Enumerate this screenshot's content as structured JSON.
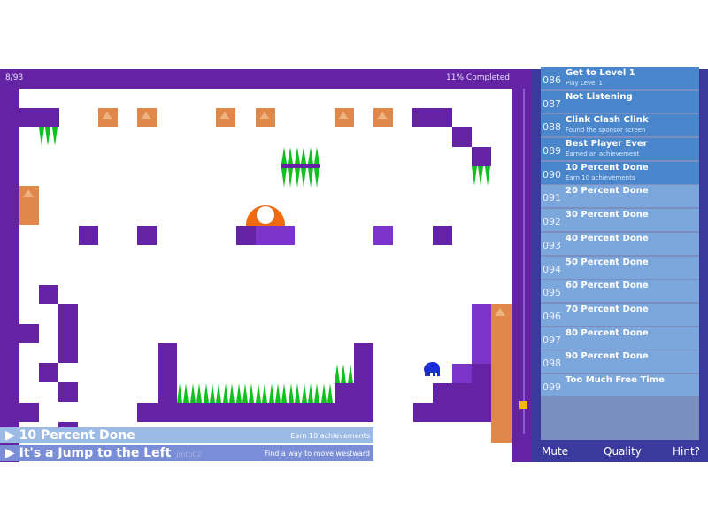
{
  "hud": {
    "level": "8/93",
    "progress": "11% Completed",
    "progress_value": 11
  },
  "banners": [
    {
      "title": "10 Percent Done",
      "desc": "Earn 10 achievements"
    },
    {
      "title": "It's a Jump to the Left",
      "desc": "Find a way to move westward",
      "author": "jmtb02"
    }
  ],
  "achievements": [
    {
      "num": "086",
      "name": "Get to Level 1",
      "desc": "Play Level 1",
      "unlocked": true
    },
    {
      "num": "087",
      "name": "Not Listening",
      "desc": "",
      "unlocked": true
    },
    {
      "num": "088",
      "name": "Clink Clash Clink",
      "desc": "Found the sponsor screen",
      "unlocked": true
    },
    {
      "num": "089",
      "name": "Best Player Ever",
      "desc": "Earned an achievement",
      "unlocked": true
    },
    {
      "num": "090",
      "name": "10 Percent Done",
      "desc": "Earn 10 achievements",
      "unlocked": true
    },
    {
      "num": "091",
      "name": "20 Percent Done",
      "desc": "",
      "unlocked": false
    },
    {
      "num": "092",
      "name": "30 Percent Done",
      "desc": "",
      "unlocked": false
    },
    {
      "num": "093",
      "name": "40 Percent Done",
      "desc": "",
      "unlocked": false
    },
    {
      "num": "094",
      "name": "50 Percent Done",
      "desc": "",
      "unlocked": false
    },
    {
      "num": "095",
      "name": "60 Percent Done",
      "desc": "",
      "unlocked": false
    },
    {
      "num": "096",
      "name": "70 Percent Done",
      "desc": "",
      "unlocked": false
    },
    {
      "num": "097",
      "name": "80 Percent Done",
      "desc": "",
      "unlocked": false
    },
    {
      "num": "098",
      "name": "90 Percent Done",
      "desc": "",
      "unlocked": false
    },
    {
      "num": "099",
      "name": "Too Much Free Time",
      "desc": "",
      "unlocked": false
    }
  ],
  "footer": {
    "mute": "Mute",
    "quality": "Quality",
    "hint": "Hint?"
  },
  "colors": {
    "wall": "#6323a3",
    "crate": "#e0884a",
    "spikes": "#10c020",
    "player": "#1a2ed8",
    "list_unlocked": "#4a86cc",
    "list_locked": "#7ba7dd"
  }
}
